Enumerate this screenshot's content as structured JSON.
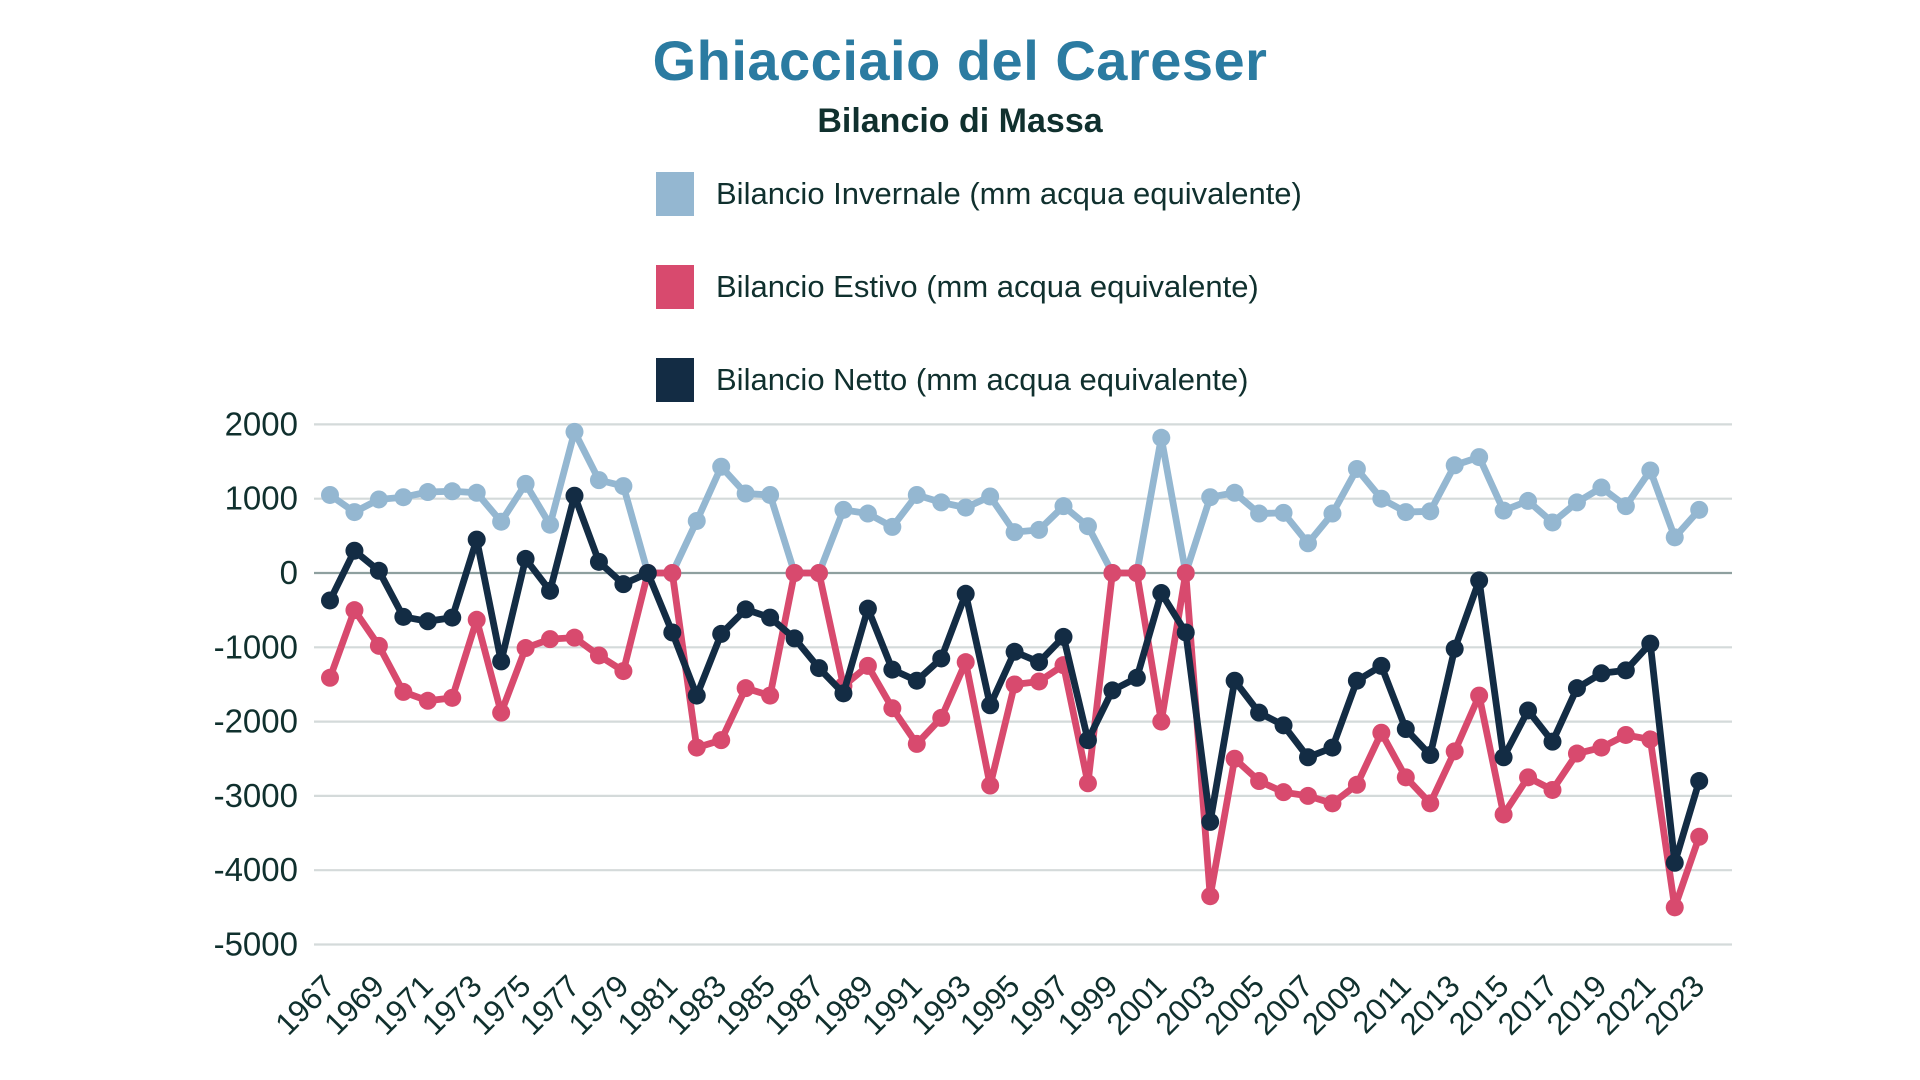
{
  "theme": {
    "background": "#ffffff",
    "title_color": "#2b7ba1",
    "text_color": "#10302e",
    "grid_color": "#d4dada",
    "zero_line_color": "#8ea09f"
  },
  "chart_data": {
    "type": "line",
    "title": "Ghiacciaio del Careser",
    "subtitle": "Bilancio di Massa",
    "xlabel": "",
    "ylabel": "",
    "ylim": [
      -5000,
      2000
    ],
    "yticks": [
      2000,
      1000,
      0,
      -1000,
      -2000,
      -3000,
      -4000,
      -5000
    ],
    "grid": "horizontal",
    "legend_position": "top-center",
    "marker": "circle",
    "x": [
      1967,
      1968,
      1969,
      1970,
      1971,
      1972,
      1973,
      1974,
      1975,
      1976,
      1977,
      1978,
      1979,
      1980,
      1981,
      1982,
      1983,
      1984,
      1985,
      1986,
      1987,
      1988,
      1989,
      1990,
      1991,
      1992,
      1993,
      1994,
      1995,
      1996,
      1997,
      1998,
      1999,
      2000,
      2001,
      2002,
      2003,
      2004,
      2005,
      2006,
      2007,
      2008,
      2009,
      2010,
      2011,
      2012,
      2013,
      2014,
      2015,
      2016,
      2017,
      2018,
      2019,
      2020,
      2021,
      2022,
      2023
    ],
    "x_tick_labels": [
      "1967",
      "1969",
      "1971",
      "1973",
      "1975",
      "1977",
      "1979",
      "1981",
      "1983",
      "1985",
      "1987",
      "1989",
      "1991",
      "1993",
      "1995",
      "1997",
      "1999",
      "2001",
      "2003",
      "2005",
      "2007",
      "2009",
      "2011",
      "2013",
      "2015",
      "2017",
      "2019",
      "2021",
      "2023"
    ],
    "series": [
      {
        "name": "Bilancio Invernale (mm acqua equivalente)",
        "color": "#94b7d1",
        "values": [
          1050,
          820,
          990,
          1020,
          1090,
          1100,
          1080,
          690,
          1200,
          650,
          1900,
          1250,
          1170,
          0,
          0,
          700,
          1430,
          1070,
          1050,
          0,
          0,
          850,
          800,
          620,
          1050,
          950,
          880,
          1030,
          550,
          580,
          900,
          630,
          0,
          0,
          1820,
          0,
          1020,
          1080,
          800,
          810,
          400,
          800,
          1400,
          1000,
          820,
          830,
          1450,
          1560,
          840,
          970,
          680,
          950,
          1150,
          900,
          1380,
          480,
          850
        ]
      },
      {
        "name": "Bilancio Estivo (mm acqua equivalente)",
        "color": "#d84a6e",
        "values": [
          -1410,
          -500,
          -980,
          -1600,
          -1720,
          -1680,
          -630,
          -1880,
          -1010,
          -890,
          -870,
          -1110,
          -1320,
          0,
          0,
          -2350,
          -2250,
          -1550,
          -1650,
          0,
          0,
          -1520,
          -1250,
          -1820,
          -2300,
          -1950,
          -1200,
          -2860,
          -1500,
          -1460,
          -1240,
          -2830,
          0,
          0,
          -2000,
          0,
          -4350,
          -2500,
          -2800,
          -2950,
          -3000,
          -3100,
          -2850,
          -2150,
          -2750,
          -3100,
          -2400,
          -1650,
          -3250,
          -2750,
          -2920,
          -2430,
          -2350,
          -2180,
          -2240,
          -4500,
          -3550
        ]
      },
      {
        "name": "Bilancio Netto (mm acqua equivalente)",
        "color": "#132c44",
        "values": [
          -370,
          300,
          30,
          -590,
          -650,
          -600,
          450,
          -1190,
          190,
          -240,
          1040,
          150,
          -150,
          0,
          -800,
          -1650,
          -820,
          -490,
          -600,
          -880,
          -1280,
          -1620,
          -480,
          -1300,
          -1450,
          -1150,
          -280,
          -1780,
          -1060,
          -1200,
          -860,
          -2250,
          -1580,
          -1410,
          -270,
          -800,
          -3350,
          -1450,
          -1880,
          -2050,
          -2480,
          -2350,
          -1450,
          -1250,
          -2100,
          -2450,
          -1020,
          -100,
          -2480,
          -1850,
          -2270,
          -1550,
          -1350,
          -1310,
          -950,
          -3900,
          -2800
        ]
      }
    ]
  },
  "legend": {
    "items": [
      {
        "label": "Bilancio Invernale (mm acqua equivalente)"
      },
      {
        "label": "Bilancio Estivo (mm acqua equivalente)"
      },
      {
        "label": "Bilancio Netto (mm acqua equivalente)"
      }
    ]
  }
}
